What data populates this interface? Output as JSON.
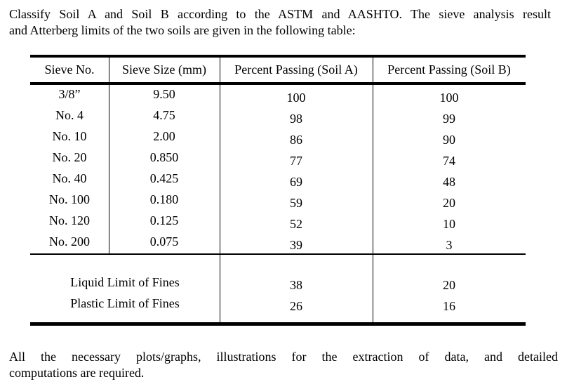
{
  "colors": {
    "background": "#ffffff",
    "text": "#000000",
    "table_rules": "#000000"
  },
  "intro": {
    "line1": "Classify Soil A and Soil B according to the ASTM and AASHTO. The sieve analysis result",
    "line2": "and Atterberg limits of the two soils are given in the following table:"
  },
  "table": {
    "headers": [
      "Sieve No.",
      "Sieve Size (mm)",
      "Percent Passing (Soil A)",
      "Percent Passing (Soil B)"
    ],
    "rows": [
      {
        "sieve_no": "3/8”",
        "size_mm": "9.50",
        "passing_a": "100",
        "passing_b": "100"
      },
      {
        "sieve_no": "No. 4",
        "size_mm": "4.75",
        "passing_a": "98",
        "passing_b": "99"
      },
      {
        "sieve_no": "No. 10",
        "size_mm": "2.00",
        "passing_a": "86",
        "passing_b": "90"
      },
      {
        "sieve_no": "No. 20",
        "size_mm": "0.850",
        "passing_a": "77",
        "passing_b": "74"
      },
      {
        "sieve_no": "No. 40",
        "size_mm": "0.425",
        "passing_a": "69",
        "passing_b": "48"
      },
      {
        "sieve_no": "No. 100",
        "size_mm": "0.180",
        "passing_a": "59",
        "passing_b": "20"
      },
      {
        "sieve_no": "No. 120",
        "size_mm": "0.125",
        "passing_a": "52",
        "passing_b": "10"
      },
      {
        "sieve_no": "No. 200",
        "size_mm": "0.075",
        "passing_a": "39",
        "passing_b": "3"
      }
    ],
    "atterberg": [
      {
        "label": "Liquid Limit of Fines",
        "soil_a": "38",
        "soil_b": "20"
      },
      {
        "label": "Plastic Limit of Fines",
        "soil_a": "26",
        "soil_b": "16"
      }
    ]
  },
  "footer": {
    "line1": "All the necessary plots/graphs, illustrations for the extraction of data, and detailed",
    "line2": "computations are required."
  }
}
